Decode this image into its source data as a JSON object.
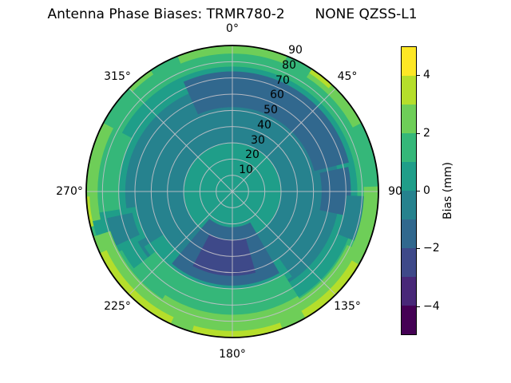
{
  "title": "Antenna Phase Biases: TRMR780-2       NONE QZSS-L1",
  "colorbar": {
    "label": "Bias (mm)",
    "min": -5,
    "max": 5,
    "tick_values": [
      4,
      2,
      0,
      -2,
      -4
    ],
    "tick_labels": [
      "4",
      "2",
      "0",
      "−2",
      "−4"
    ],
    "band_colors_bottom_to_top": [
      "#440154",
      "#482878",
      "#3e4989",
      "#31688e",
      "#26828e",
      "#1f9e89",
      "#35b779",
      "#6ece58",
      "#b5de2b",
      "#fde725"
    ]
  },
  "chart_data": {
    "type": "heatmap",
    "projection": "polar",
    "title": "Antenna Phase Biases: TRMR780-2       NONE QZSS-L1",
    "value_label": "Bias (mm)",
    "value_range": [
      -5,
      5
    ],
    "level_step_mm": 1,
    "angular_ticks": [
      {
        "angle": 0,
        "label": "0°"
      },
      {
        "angle": 45,
        "label": "45°"
      },
      {
        "angle": 90,
        "label": "90"
      },
      {
        "angle": 135,
        "label": "135°"
      },
      {
        "angle": 180,
        "label": "180°"
      },
      {
        "angle": 225,
        "label": "225°"
      },
      {
        "angle": 270,
        "label": "270°"
      },
      {
        "angle": 315,
        "label": "315°"
      }
    ],
    "radial_ticks": [
      "10",
      "20",
      "30",
      "40",
      "50",
      "60",
      "70",
      "80",
      "90"
    ],
    "radial_max": 90,
    "radial_label_angle": 22.5,
    "grid": {
      "color": "#c2c1c8",
      "ring_step": 10,
      "spoke_step_deg": 45
    },
    "outline_color": "#000000",
    "band_legend": {
      "#440154": "-5 to -4 mm",
      "#482878": "-4 to -3 mm",
      "#3e4989": "-3 to -2 mm",
      "#31688e": "-2 to -1 mm",
      "#26828e": "-1 to 0 mm",
      "#1f9e89": "0 to 1 mm",
      "#35b779": "1 to 2 mm",
      "#6ece58": "2 to 3 mm",
      "#b5de2b": "3 to 4 mm",
      "#fde725": "4 to 5 mm"
    },
    "regions": [
      {
        "name": "base-outer-ring",
        "color": "#35b779",
        "mm": "1 to 2",
        "az": [
          0,
          360
        ],
        "r": [
          0,
          90
        ]
      },
      {
        "name": "ring-teal",
        "color": "#1f9e89",
        "mm": "0 to 1",
        "az": [
          0,
          360
        ],
        "r": [
          0,
          77
        ]
      },
      {
        "name": "interior-darkteal",
        "color": "#26828e",
        "mm": "-1 to 0",
        "az": [
          0,
          360
        ],
        "r": [
          0,
          66
        ]
      },
      {
        "name": "center-disk",
        "color": "#1f9e89",
        "mm": "0 to 1",
        "az": [
          0,
          360
        ],
        "r": [
          0,
          30
        ]
      },
      {
        "name": "blue-arc-top",
        "color": "#31688e",
        "mm": "-2 to -1",
        "az": [
          336,
          76
        ],
        "r": [
          52,
          74
        ]
      },
      {
        "name": "blue-patch-right",
        "color": "#31688e",
        "mm": "-2 to -1",
        "az": [
          78,
          102
        ],
        "r": [
          55,
          73
        ]
      },
      {
        "name": "darkteal-right-rim",
        "color": "#26828e",
        "mm": "-1 to 0",
        "az": [
          92,
          112
        ],
        "r": [
          70,
          86
        ]
      },
      {
        "name": "teal-band-bottom",
        "color": "#1f9e89",
        "mm": "0 to 1",
        "az": [
          145,
          238
        ],
        "r": [
          50,
          64
        ]
      },
      {
        "name": "blue-blob-bottom",
        "color": "#31688e",
        "mm": "-2 to -1",
        "az": [
          150,
          220
        ],
        "r": [
          22,
          58
        ]
      },
      {
        "name": "navy-arc-bottom",
        "color": "#3e4989",
        "mm": "-3 to -2",
        "az": [
          164,
          208
        ],
        "r": [
          30,
          52
        ]
      },
      {
        "name": "green-bottom",
        "color": "#35b779",
        "mm": "1 to 2",
        "az": [
          148,
          232
        ],
        "r": [
          60,
          90
        ]
      },
      {
        "name": "green-left",
        "color": "#35b779",
        "mm": "1 to 2",
        "az": [
          250,
          298
        ],
        "r": [
          70,
          90
        ]
      },
      {
        "name": "teal-notch-left",
        "color": "#1f9e89",
        "mm": "0 to 1",
        "az": [
          242,
          261
        ],
        "r": [
          60,
          88
        ]
      },
      {
        "name": "darkteal-notch-left",
        "color": "#26828e",
        "mm": "-1 to 0",
        "az": [
          245,
          258
        ],
        "r": [
          63,
          79
        ]
      },
      {
        "name": "accent-top",
        "color": "#6ece58",
        "mm": "2 to 3",
        "az": [
          338,
          22
        ],
        "r": [
          85,
          90
        ]
      },
      {
        "name": "accent-ne",
        "color": "#6ece58",
        "mm": "2 to 3",
        "az": [
          33,
          62
        ],
        "r": [
          84,
          90
        ]
      },
      {
        "name": "accent-right",
        "color": "#6ece58",
        "mm": "2 to 3",
        "az": [
          88,
          118
        ],
        "r": [
          81,
          90
        ]
      },
      {
        "name": "accent-se",
        "color": "#6ece58",
        "mm": "2 to 3",
        "az": [
          115,
          150
        ],
        "r": [
          78,
          90
        ]
      },
      {
        "name": "accent-bottom",
        "color": "#6ece58",
        "mm": "2 to 3",
        "az": [
          148,
          213
        ],
        "r": [
          76,
          90
        ]
      },
      {
        "name": "accent-sw",
        "color": "#6ece58",
        "mm": "2 to 3",
        "az": [
          213,
          252
        ],
        "r": [
          79,
          90
        ]
      },
      {
        "name": "accent-left",
        "color": "#6ece58",
        "mm": "2 to 3",
        "az": [
          258,
          298
        ],
        "r": [
          83,
          90
        ]
      },
      {
        "name": "accent-nw",
        "color": "#6ece58",
        "mm": "2 to 3",
        "az": [
          315,
          326
        ],
        "r": [
          87,
          90
        ]
      },
      {
        "name": "sliver-ne",
        "color": "#b5de2b",
        "mm": "3 to 4",
        "az": [
          33,
          43
        ],
        "r": [
          87,
          90
        ]
      },
      {
        "name": "sliver-se",
        "color": "#b5de2b",
        "mm": "3 to 4",
        "az": [
          120,
          150
        ],
        "r": [
          85,
          90
        ]
      },
      {
        "name": "sliver-bottom",
        "color": "#b5de2b",
        "mm": "3 to 4",
        "az": [
          160,
          196
        ],
        "r": [
          86,
          90
        ]
      },
      {
        "name": "sliver-sw",
        "color": "#b5de2b",
        "mm": "3 to 4",
        "az": [
          205,
          245
        ],
        "r": [
          85.5,
          90
        ]
      },
      {
        "name": "sliver-left",
        "color": "#b5de2b",
        "mm": "3 to 4",
        "az": [
          256,
          268
        ],
        "r": [
          88,
          90
        ]
      }
    ],
    "colorbar": {
      "label": "Bias (mm)",
      "min": -5,
      "max": 5,
      "tick_values": [
        4,
        2,
        0,
        -2,
        -4
      ],
      "tick_labels": [
        "4",
        "2",
        "0",
        "−2",
        "−4"
      ],
      "band_colors_bottom_to_top": [
        "#440154",
        "#482878",
        "#3e4989",
        "#31688e",
        "#26828e",
        "#1f9e89",
        "#35b779",
        "#6ece58",
        "#b5de2b",
        "#fde725"
      ]
    }
  }
}
